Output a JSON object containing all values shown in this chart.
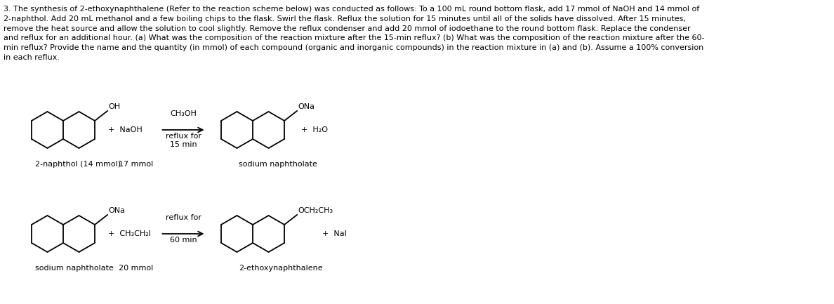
{
  "background_color": "#ffffff",
  "text_color": "#000000",
  "fig_width": 11.88,
  "fig_height": 4.33,
  "dpi": 100,
  "paragraph": "3. The synthesis of 2-ethoxynaphthalene (Refer to the reaction scheme below) was conducted as follows: To a 100 mL round bottom flask, add 17 mmol of NaOH and 14 mmol of\n2-naphthol. Add 20 mL methanol and a few boiling chips to the flask. Swirl the flask. Reflux the solution for 15 minutes until all of the solids have dissolved. After 15 minutes,\nremove the heat source and allow the solution to cool slightly. Remove the reflux condenser and add 20 mmol of iodoethane to the round bottom flask. Replace the condenser\nand reflux for an additional hour. (a) What was the composition of the reaction mixture after the 15-min reflux? (b) What was the composition of the reaction mixture after the 60-\nmin reflux? Provide the name and the quantity (in mmol) of each compound (organic and inorganic compounds) in the reaction mixture in (a) and (b). Assume a 100% conversion\nin each reflux.",
  "rxn1": {
    "naphthol_label": "2-naphthol (14 mmol)",
    "naoh_label": "17 mmol",
    "arrow_label_top": "CH₃OH",
    "arrow_label_mid": "reflux for",
    "arrow_label_bot": "15 min",
    "naph_ona_label": "sodium naphtholate",
    "plus1": "+  NaOH",
    "plus2": "+  H₂O",
    "oh_group": "OH",
    "ona_group": "ONa"
  },
  "rxn2": {
    "sod_naph_label": "sodium naphtholate",
    "ch3ch2i_label": "+  CH₃CH₂I",
    "mmol_label": "20 mmol",
    "arrow_label_top": "reflux for",
    "arrow_label_bot": "60 min",
    "product_label": "2-ethoxynaphthalene",
    "plus_nal": "+  NaI",
    "ona_group": "ONa",
    "och2ch3_group": "OCH₂CH₃"
  },
  "font_size_para": 8.0,
  "font_size_label": 8.0,
  "font_size_chem": 8.0,
  "font_size_group": 8.0
}
